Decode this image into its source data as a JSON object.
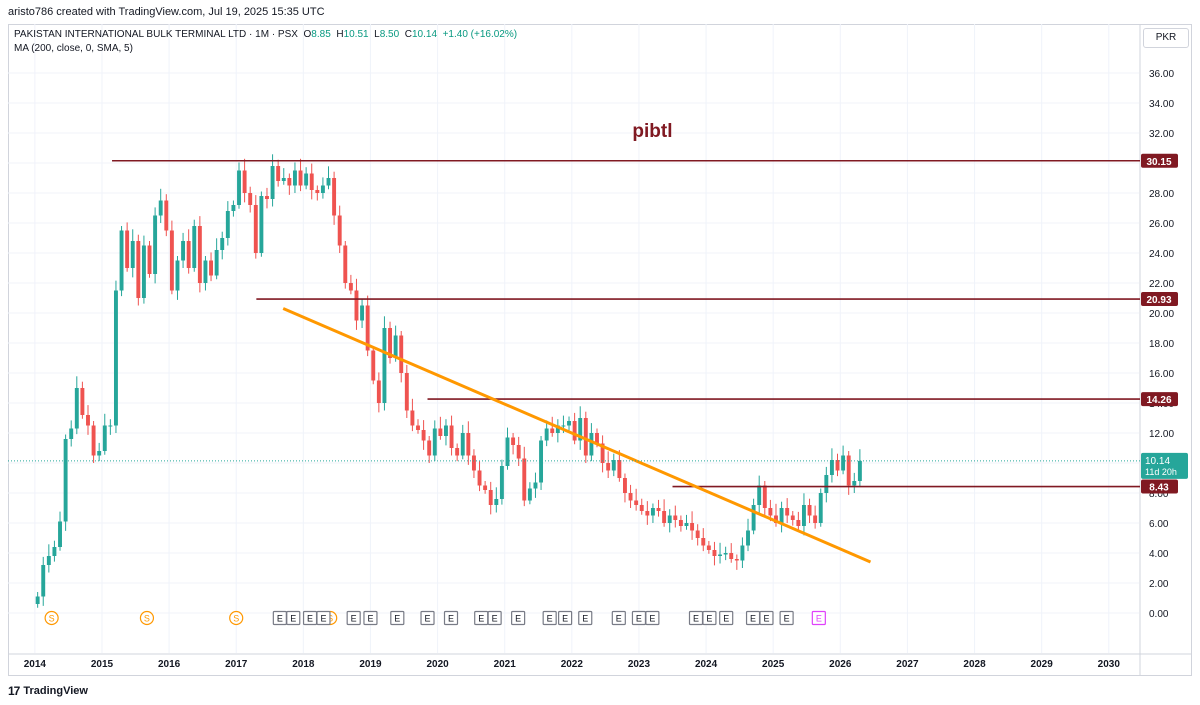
{
  "caption": "aristo786 created with TradingView.com, Jul 19, 2025 15:35 UTC",
  "legend": {
    "symbol": "PAKISTAN INTERNATIONAL BULK TERMINAL LTD · 1M · PSX",
    "o_label": "O",
    "o_value": "8.85",
    "h_label": "H",
    "h_value": "10.51",
    "l_label": "L",
    "l_value": "8.50",
    "c_label": "C",
    "c_value": "10.14",
    "change": "+1.40 (+16.02%)",
    "ma": "MA (200, close, 0, SMA, 5)"
  },
  "currency": "PKR",
  "footer": {
    "logo_glyph": "17",
    "brand": "TradingView"
  },
  "colors": {
    "up": "#26a69a",
    "down": "#ef5350",
    "trend": "#ff9800",
    "level": "#801922",
    "price": "#26a69a",
    "earnings": "#787b86",
    "dividend": "#ff9800",
    "upcoming": "#e040fb"
  },
  "chart_data": {
    "type": "candlestick",
    "title": "pibtl",
    "interval": "1M",
    "ylim": [
      -1,
      37
    ],
    "y_ticks": [
      "0.00",
      "2.00",
      "4.00",
      "6.00",
      "8.00",
      "10.00",
      "12.00",
      "14.00",
      "16.00",
      "18.00",
      "20.00",
      "22.00",
      "24.00",
      "26.00",
      "28.00",
      "30.00",
      "32.00",
      "34.00",
      "36.00"
    ],
    "x_ticks": [
      {
        "label": "2014",
        "x": 2014
      },
      {
        "label": "2015",
        "x": 2015
      },
      {
        "label": "2016",
        "x": 2016
      },
      {
        "label": "2017",
        "x": 2017
      },
      {
        "label": "2018",
        "x": 2018
      },
      {
        "label": "2019",
        "x": 2019
      },
      {
        "label": "2020",
        "x": 2020
      },
      {
        "label": "2021",
        "x": 2021
      },
      {
        "label": "2022",
        "x": 2022
      },
      {
        "label": "2023",
        "x": 2023
      },
      {
        "label": "2024",
        "x": 2024
      },
      {
        "label": "2025",
        "x": 2025
      },
      {
        "label": "2026",
        "x": 2026
      },
      {
        "label": "2027",
        "x": 2027
      },
      {
        "label": "2028",
        "x": 2028
      },
      {
        "label": "2029",
        "x": 2029
      },
      {
        "label": "2030",
        "x": 2030
      }
    ],
    "xlim": [
      2013.6,
      2030.45
    ],
    "series_start": 2014.0,
    "closes": [
      1.1,
      3.2,
      3.8,
      4.4,
      6.1,
      11.6,
      12.3,
      15.0,
      13.2,
      12.5,
      10.5,
      10.8,
      12.5,
      12.5,
      21.5,
      25.5,
      23.0,
      24.8,
      21.0,
      24.5,
      22.6,
      26.5,
      27.5,
      25.5,
      21.5,
      23.5,
      24.8,
      23.0,
      25.8,
      22.0,
      23.5,
      22.5,
      24.2,
      25.0,
      26.8,
      27.2,
      29.5,
      28.0,
      27.2,
      24.0,
      27.8,
      27.6,
      29.8,
      28.8,
      29.0,
      28.5,
      29.5,
      28.5,
      29.3,
      28.2,
      28.0,
      28.5,
      29.0,
      26.5,
      24.5,
      22.0,
      21.5,
      19.5,
      20.5,
      17.5,
      15.5,
      14.0,
      19.0,
      17.0,
      18.5,
      16.0,
      13.5,
      12.5,
      12.2,
      11.5,
      10.5,
      12.3,
      11.8,
      12.5,
      11.0,
      10.5,
      12.0,
      10.5,
      9.5,
      8.5,
      8.2,
      7.2,
      7.6,
      9.8,
      11.7,
      11.2,
      10.3,
      7.5,
      8.3,
      8.7,
      11.5,
      12.3,
      12.0,
      12.5,
      12.5,
      12.8,
      11.5,
      13.0,
      10.5,
      12.0,
      11.3,
      10.0,
      9.5,
      10.2,
      9.0,
      8.0,
      7.5,
      7.2,
      6.8,
      6.5,
      7.0,
      6.8,
      6.0,
      6.5,
      6.2,
      5.8,
      6.0,
      5.5,
      5.0,
      4.5,
      4.2,
      3.8,
      3.9,
      4.0,
      3.6,
      3.5,
      4.5,
      5.5,
      7.2,
      8.5,
      7.0,
      6.5,
      6.0,
      7.0,
      6.5,
      6.2,
      5.8,
      7.2,
      6.5,
      6.0,
      8.0,
      9.2,
      10.2,
      9.5,
      10.5,
      8.5,
      8.8,
      10.14
    ],
    "opens_start": 0.6,
    "highs_extra": 0.6,
    "lows_extra": 0.5,
    "annotations": {
      "horizontal_levels": [
        {
          "label": "30.15",
          "value": 30.15,
          "from": 2015.15
        },
        {
          "label": "20.93",
          "value": 20.93,
          "from": 2017.3
        },
        {
          "label": "14.26",
          "value": 14.26,
          "from": 2019.85
        },
        {
          "label": "8.43",
          "value": 8.43,
          "from": 2023.5
        }
      ],
      "trendline": {
        "from": [
          2017.7,
          20.3
        ],
        "to": [
          2026.45,
          3.4
        ]
      },
      "current_price": {
        "label": "10.14",
        "countdown": "11d 20h",
        "value": 10.14
      }
    },
    "events": {
      "dividends": [
        {
          "label": "S",
          "x": 2014.25
        },
        {
          "label": "S",
          "x": 2015.67
        },
        {
          "label": "S",
          "x": 2017.0
        },
        {
          "label": "S",
          "x": 2018.4
        }
      ],
      "earnings": [
        {
          "label": "E",
          "x": 2017.65
        },
        {
          "label": "E",
          "x": 2017.85
        },
        {
          "label": "E",
          "x": 2018.1
        },
        {
          "label": "E",
          "x": 2018.3
        },
        {
          "label": "E",
          "x": 2018.75
        },
        {
          "label": "E",
          "x": 2019.0
        },
        {
          "label": "E",
          "x": 2019.4
        },
        {
          "label": "E",
          "x": 2019.85
        },
        {
          "label": "E",
          "x": 2020.2
        },
        {
          "label": "E",
          "x": 2020.65
        },
        {
          "label": "E",
          "x": 2020.85
        },
        {
          "label": "E",
          "x": 2021.2
        },
        {
          "label": "E",
          "x": 2021.67
        },
        {
          "label": "E",
          "x": 2021.9
        },
        {
          "label": "E",
          "x": 2022.2
        },
        {
          "label": "E",
          "x": 2022.7
        },
        {
          "label": "E",
          "x": 2023.0
        },
        {
          "label": "E",
          "x": 2023.2
        },
        {
          "label": "E",
          "x": 2023.85
        },
        {
          "label": "E",
          "x": 2024.05
        },
        {
          "label": "E",
          "x": 2024.3
        },
        {
          "label": "E",
          "x": 2024.7
        },
        {
          "label": "E",
          "x": 2024.9
        },
        {
          "label": "E",
          "x": 2025.2
        }
      ],
      "upcoming": [
        {
          "label": "E",
          "x": 2025.68
        }
      ]
    }
  }
}
